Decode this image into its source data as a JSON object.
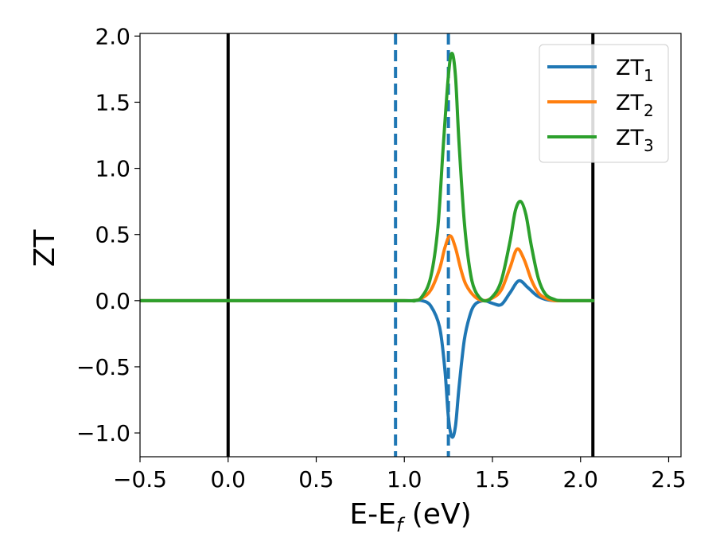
{
  "chart_data": {
    "type": "line",
    "xlabel": "E-E",
    "xlabel_sub": "f",
    "xlabel_unit": " (eV)",
    "ylabel": "ZT",
    "xlim": [
      -0.5,
      2.57
    ],
    "ylim": [
      -1.18,
      2.02
    ],
    "xticks": [
      -0.5,
      0.0,
      0.5,
      1.0,
      1.5,
      2.0,
      2.5
    ],
    "xtick_labels": [
      "−0.5",
      "0.0",
      "0.5",
      "1.0",
      "1.5",
      "2.0",
      "2.5"
    ],
    "yticks": [
      -1.0,
      -0.5,
      0.0,
      0.5,
      1.0,
      1.5,
      2.0
    ],
    "ytick_labels": [
      "−1.0",
      "−0.5",
      "0.0",
      "0.5",
      "1.0",
      "1.5",
      "2.0"
    ],
    "grid": false,
    "legend_position": "top-right",
    "vertical_lines": [
      {
        "x": 0.0,
        "style": "solid",
        "color": "#000000"
      },
      {
        "x": 2.07,
        "style": "solid",
        "color": "#000000"
      },
      {
        "x": 0.95,
        "style": "dashed",
        "color": "#1f77b4"
      },
      {
        "x": 1.25,
        "style": "dashed",
        "color": "#1f77b4"
      }
    ],
    "series": [
      {
        "name": "ZT",
        "name_sub": "1",
        "color": "#1f77b4",
        "x": [
          -0.5,
          0.9,
          1.05,
          1.1,
          1.15,
          1.2,
          1.23,
          1.25,
          1.27,
          1.29,
          1.31,
          1.34,
          1.37,
          1.4,
          1.45,
          1.5,
          1.55,
          1.6,
          1.65,
          1.7,
          1.75,
          1.8,
          1.85,
          1.9,
          2.07
        ],
        "y": [
          0.0,
          0.0,
          0.0,
          0.0,
          -0.04,
          -0.2,
          -0.52,
          -0.88,
          -1.03,
          -0.95,
          -0.66,
          -0.3,
          -0.12,
          -0.03,
          0.0,
          -0.02,
          -0.03,
          0.06,
          0.15,
          0.1,
          0.04,
          0.01,
          0.0,
          0.0,
          0.0
        ]
      },
      {
        "name": "ZT",
        "name_sub": "2",
        "color": "#ff7f0e",
        "x": [
          -0.5,
          0.9,
          1.05,
          1.1,
          1.15,
          1.2,
          1.23,
          1.26,
          1.29,
          1.32,
          1.35,
          1.4,
          1.45,
          1.5,
          1.55,
          1.6,
          1.64,
          1.68,
          1.72,
          1.76,
          1.8,
          1.85,
          1.9,
          2.07
        ],
        "y": [
          0.0,
          0.0,
          0.0,
          0.02,
          0.08,
          0.24,
          0.4,
          0.49,
          0.4,
          0.24,
          0.12,
          0.03,
          0.0,
          0.02,
          0.08,
          0.25,
          0.39,
          0.31,
          0.16,
          0.06,
          0.02,
          0.0,
          0.0,
          0.0
        ]
      },
      {
        "name": "ZT",
        "name_sub": "3",
        "color": "#2ca02c",
        "x": [
          -0.5,
          0.9,
          1.05,
          1.1,
          1.15,
          1.19,
          1.22,
          1.25,
          1.27,
          1.29,
          1.31,
          1.34,
          1.37,
          1.4,
          1.45,
          1.5,
          1.55,
          1.6,
          1.63,
          1.66,
          1.69,
          1.72,
          1.76,
          1.8,
          1.85,
          1.9,
          2.07
        ],
        "y": [
          0.0,
          0.0,
          0.0,
          0.03,
          0.18,
          0.55,
          1.15,
          1.7,
          1.87,
          1.7,
          1.2,
          0.6,
          0.25,
          0.08,
          0.0,
          0.03,
          0.15,
          0.45,
          0.68,
          0.75,
          0.65,
          0.42,
          0.17,
          0.05,
          0.01,
          0.0,
          0.0
        ]
      }
    ]
  }
}
